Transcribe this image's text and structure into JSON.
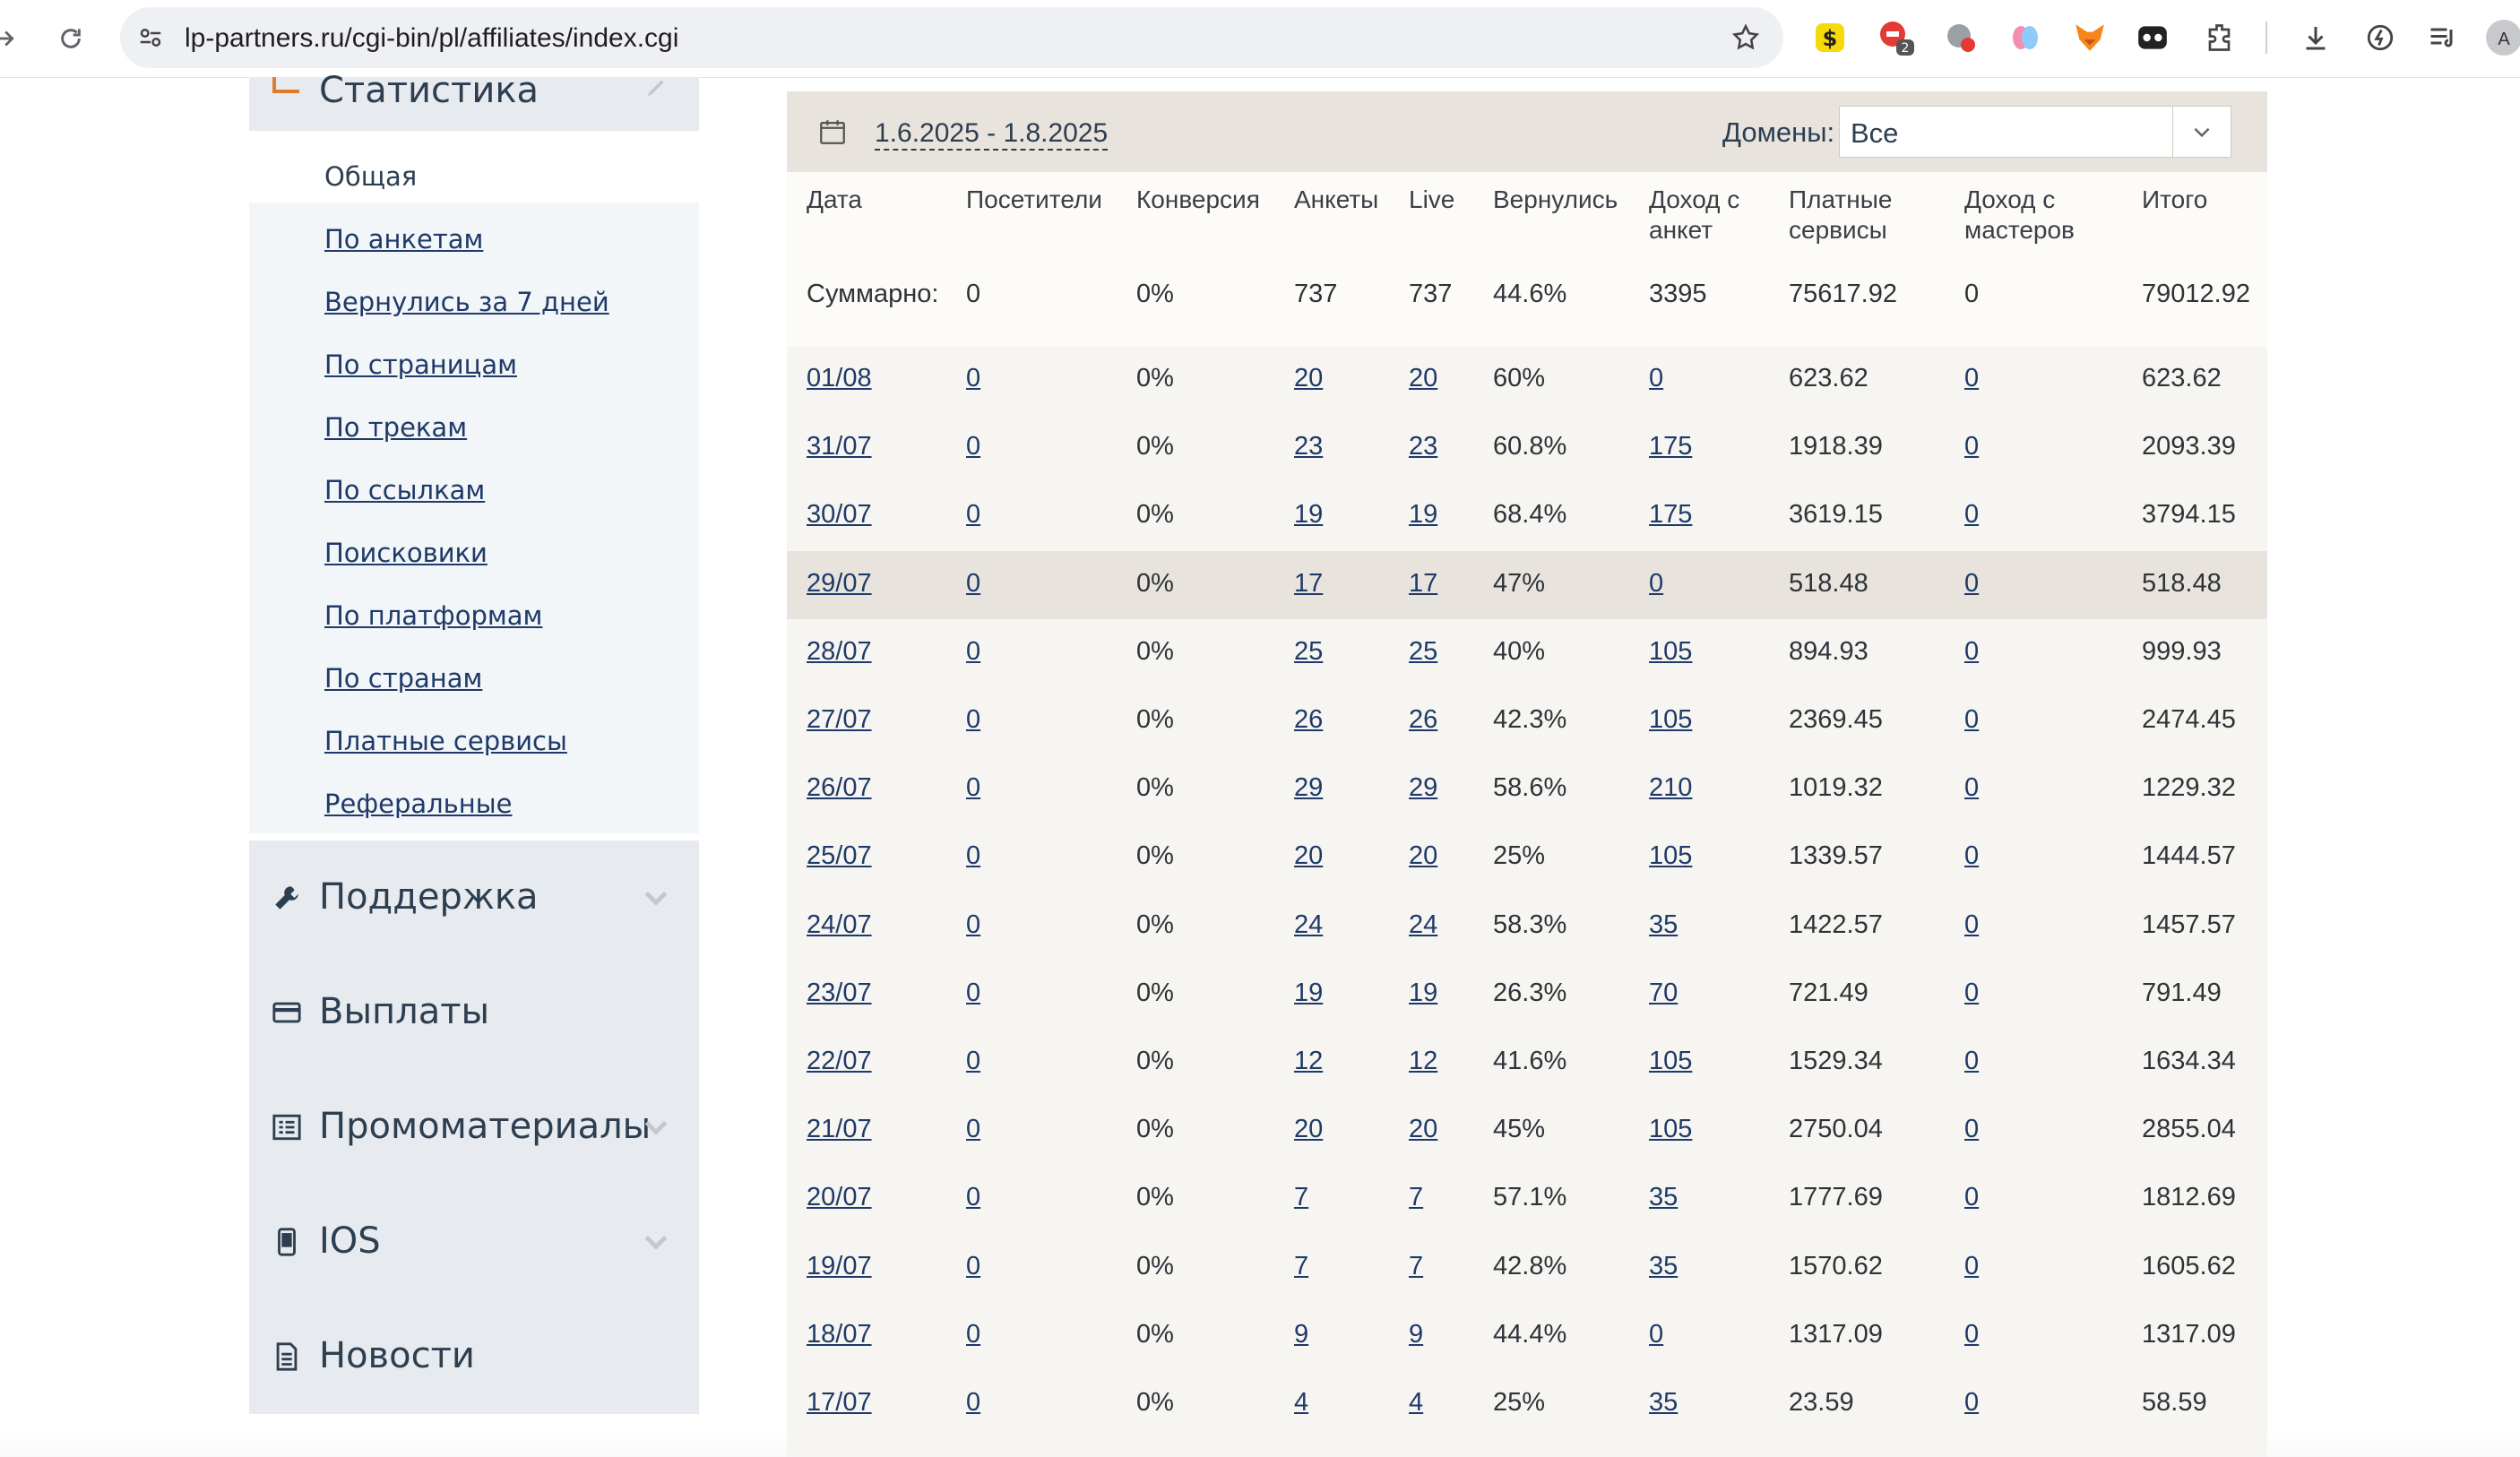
{
  "browser": {
    "url": "lp-partners.ru/cgi-bin/pl/affiliates/index.cgi",
    "extension_badge": "2",
    "profile_initial": "A"
  },
  "sidebar": {
    "stat_title": "Статистика",
    "items": [
      {
        "label": "Общая",
        "active": true
      },
      {
        "label": "По анкетам"
      },
      {
        "label": "Вернулись за 7 дней"
      },
      {
        "label": "По страницам"
      },
      {
        "label": "По трекам"
      },
      {
        "label": "По ссылкам"
      },
      {
        "label": "Поисковики"
      },
      {
        "label": "По платформам"
      },
      {
        "label": "По странам"
      },
      {
        "label": "Платные сервисы"
      },
      {
        "label": "Реферальные"
      }
    ],
    "sections": [
      {
        "label": "Поддержка",
        "icon": "wrench-icon",
        "chevron": true
      },
      {
        "label": "Выплаты",
        "icon": "card-icon",
        "chevron": false
      },
      {
        "label": "Промоматериалы",
        "icon": "list-icon",
        "chevron": true
      },
      {
        "label": "IOS",
        "icon": "phone-icon",
        "chevron": true
      },
      {
        "label": "Новости",
        "icon": "document-icon",
        "chevron": false
      }
    ]
  },
  "filter": {
    "date_range": "1.6.2025 - 1.8.2025",
    "domains_label": "Домены:",
    "domains_value": "Все"
  },
  "table": {
    "headers": [
      "Дата",
      "Посетители",
      "Конверсия",
      "Анкеты",
      "Live",
      "Вернулись",
      "Доход с анкет",
      "Платные сервисы",
      "Доход с мастеров",
      "Итого"
    ],
    "header_lines": [
      [
        "Дата"
      ],
      [
        "Посетители"
      ],
      [
        "Конверсия"
      ],
      [
        "Анкеты"
      ],
      [
        "Live"
      ],
      [
        "Вернулись"
      ],
      [
        "Доход с",
        "анкет"
      ],
      [
        "Платные",
        "сервисы"
      ],
      [
        "Доход с",
        "мастеров"
      ],
      [
        "Итого"
      ]
    ],
    "summary": [
      "Суммарно:",
      "0",
      "0%",
      "737",
      "737",
      "44.6%",
      "3395",
      "75617.92",
      "0",
      "79012.92"
    ],
    "rows": [
      [
        "01/08",
        "0",
        "0%",
        "20",
        "20",
        "60%",
        "0",
        "623.62",
        "0",
        "623.62"
      ],
      [
        "31/07",
        "0",
        "0%",
        "23",
        "23",
        "60.8%",
        "175",
        "1918.39",
        "0",
        "2093.39"
      ],
      [
        "30/07",
        "0",
        "0%",
        "19",
        "19",
        "68.4%",
        "175",
        "3619.15",
        "0",
        "3794.15"
      ],
      [
        "29/07",
        "0",
        "0%",
        "17",
        "17",
        "47%",
        "0",
        "518.48",
        "0",
        "518.48"
      ],
      [
        "28/07",
        "0",
        "0%",
        "25",
        "25",
        "40%",
        "105",
        "894.93",
        "0",
        "999.93"
      ],
      [
        "27/07",
        "0",
        "0%",
        "26",
        "26",
        "42.3%",
        "105",
        "2369.45",
        "0",
        "2474.45"
      ],
      [
        "26/07",
        "0",
        "0%",
        "29",
        "29",
        "58.6%",
        "210",
        "1019.32",
        "0",
        "1229.32"
      ],
      [
        "25/07",
        "0",
        "0%",
        "20",
        "20",
        "25%",
        "105",
        "1339.57",
        "0",
        "1444.57"
      ],
      [
        "24/07",
        "0",
        "0%",
        "24",
        "24",
        "58.3%",
        "35",
        "1422.57",
        "0",
        "1457.57"
      ],
      [
        "23/07",
        "0",
        "0%",
        "19",
        "19",
        "26.3%",
        "70",
        "721.49",
        "0",
        "791.49"
      ],
      [
        "22/07",
        "0",
        "0%",
        "12",
        "12",
        "41.6%",
        "105",
        "1529.34",
        "0",
        "1634.34"
      ],
      [
        "21/07",
        "0",
        "0%",
        "20",
        "20",
        "45%",
        "105",
        "2750.04",
        "0",
        "2855.04"
      ],
      [
        "20/07",
        "0",
        "0%",
        "7",
        "7",
        "57.1%",
        "35",
        "1777.69",
        "0",
        "1812.69"
      ],
      [
        "19/07",
        "0",
        "0%",
        "7",
        "7",
        "42.8%",
        "35",
        "1570.62",
        "0",
        "1605.62"
      ],
      [
        "18/07",
        "0",
        "0%",
        "9",
        "9",
        "44.4%",
        "0",
        "1317.09",
        "0",
        "1317.09"
      ],
      [
        "17/07",
        "0",
        "0%",
        "4",
        "4",
        "25%",
        "35",
        "23.59",
        "0",
        "58.59"
      ]
    ],
    "highlighted_row": "29/07"
  }
}
